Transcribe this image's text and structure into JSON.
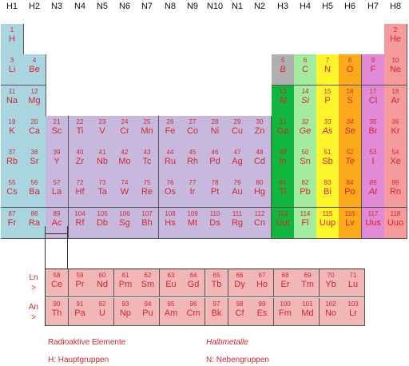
{
  "headers": [
    "H1",
    "H2",
    "N3",
    "N4",
    "N5",
    "N6",
    "N7",
    "N8",
    "N9",
    "N10",
    "N1",
    "N2",
    "H3",
    "H4",
    "H5",
    "H6",
    "H7",
    "H8"
  ],
  "colors": {
    "s_block": "#a9d5e0",
    "d_block": "#c6b9dd",
    "f_block": "#f1b6b6",
    "noble": "#f69b9b",
    "boron": "#b0b0b0",
    "h3_metal": "#11b63e",
    "h4": "#a3ec9f",
    "h5": "#fcf52c",
    "h6": "#fda91c",
    "h7": "#e08ad8",
    "text": "#d8242c"
  },
  "elements": [
    {
      "n": "1",
      "s": "H",
      "r": 0,
      "c": 0,
      "g": "s"
    },
    {
      "n": "2",
      "s": "He",
      "r": 0,
      "c": 17,
      "g": "noble"
    },
    {
      "n": "3",
      "s": "Li",
      "r": 1,
      "c": 0,
      "g": "s"
    },
    {
      "n": "4",
      "s": "Be",
      "r": 1,
      "c": 1,
      "g": "s"
    },
    {
      "n": "5",
      "s": "B",
      "r": 1,
      "c": 12,
      "g": "boron",
      "i": true
    },
    {
      "n": "6",
      "s": "C",
      "r": 1,
      "c": 13,
      "g": "h4"
    },
    {
      "n": "7",
      "s": "N",
      "r": 1,
      "c": 14,
      "g": "h5"
    },
    {
      "n": "8",
      "s": "O",
      "r": 1,
      "c": 15,
      "g": "h6"
    },
    {
      "n": "9",
      "s": "F",
      "r": 1,
      "c": 16,
      "g": "h7"
    },
    {
      "n": "10",
      "s": "Ne",
      "r": 1,
      "c": 17,
      "g": "noble"
    },
    {
      "n": "11",
      "s": "Na",
      "r": 2,
      "c": 0,
      "g": "s"
    },
    {
      "n": "12",
      "s": "Mg",
      "r": 2,
      "c": 1,
      "g": "s"
    },
    {
      "n": "13",
      "s": "Al",
      "r": 2,
      "c": 12,
      "g": "h3"
    },
    {
      "n": "14",
      "s": "Si",
      "r": 2,
      "c": 13,
      "g": "h4",
      "i": true
    },
    {
      "n": "15",
      "s": "P",
      "r": 2,
      "c": 14,
      "g": "h5"
    },
    {
      "n": "16",
      "s": "S",
      "r": 2,
      "c": 15,
      "g": "h6"
    },
    {
      "n": "17",
      "s": "Cl",
      "r": 2,
      "c": 16,
      "g": "h7"
    },
    {
      "n": "18",
      "s": "Ar",
      "r": 2,
      "c": 17,
      "g": "noble"
    },
    {
      "n": "19",
      "s": "K",
      "r": 3,
      "c": 0,
      "g": "s"
    },
    {
      "n": "20",
      "s": "Ca",
      "r": 3,
      "c": 1,
      "g": "s"
    },
    {
      "n": "21",
      "s": "Sc",
      "r": 3,
      "c": 2,
      "g": "d"
    },
    {
      "n": "22",
      "s": "Ti",
      "r": 3,
      "c": 3,
      "g": "d"
    },
    {
      "n": "23",
      "s": "V",
      "r": 3,
      "c": 4,
      "g": "d"
    },
    {
      "n": "24",
      "s": "Cr",
      "r": 3,
      "c": 5,
      "g": "d"
    },
    {
      "n": "25",
      "s": "Mn",
      "r": 3,
      "c": 6,
      "g": "d"
    },
    {
      "n": "26",
      "s": "Fe",
      "r": 3,
      "c": 7,
      "g": "d"
    },
    {
      "n": "27",
      "s": "Co",
      "r": 3,
      "c": 8,
      "g": "d"
    },
    {
      "n": "28",
      "s": "Ni",
      "r": 3,
      "c": 9,
      "g": "d"
    },
    {
      "n": "29",
      "s": "Cu",
      "r": 3,
      "c": 10,
      "g": "d"
    },
    {
      "n": "30",
      "s": "Zn",
      "r": 3,
      "c": 11,
      "g": "d"
    },
    {
      "n": "31",
      "s": "Ga",
      "r": 3,
      "c": 12,
      "g": "h3"
    },
    {
      "n": "32",
      "s": "Ge",
      "r": 3,
      "c": 13,
      "g": "h4",
      "i": true
    },
    {
      "n": "33",
      "s": "As",
      "r": 3,
      "c": 14,
      "g": "h5",
      "i": true
    },
    {
      "n": "34",
      "s": "Se",
      "r": 3,
      "c": 15,
      "g": "h6",
      "i": true
    },
    {
      "n": "35",
      "s": "Br",
      "r": 3,
      "c": 16,
      "g": "h7"
    },
    {
      "n": "36",
      "s": "Kr",
      "r": 3,
      "c": 17,
      "g": "noble"
    },
    {
      "n": "37",
      "s": "Rb",
      "r": 4,
      "c": 0,
      "g": "s"
    },
    {
      "n": "38",
      "s": "Sr",
      "r": 4,
      "c": 1,
      "g": "s"
    },
    {
      "n": "39",
      "s": "Y",
      "r": 4,
      "c": 2,
      "g": "d"
    },
    {
      "n": "40",
      "s": "Zr",
      "r": 4,
      "c": 3,
      "g": "d"
    },
    {
      "n": "41",
      "s": "Nb",
      "r": 4,
      "c": 4,
      "g": "d"
    },
    {
      "n": "42",
      "s": "Mo",
      "r": 4,
      "c": 5,
      "g": "d"
    },
    {
      "n": "43",
      "s": "Tc",
      "r": 4,
      "c": 6,
      "g": "d"
    },
    {
      "n": "44",
      "s": "Ru",
      "r": 4,
      "c": 7,
      "g": "d"
    },
    {
      "n": "45",
      "s": "Rh",
      "r": 4,
      "c": 8,
      "g": "d"
    },
    {
      "n": "46",
      "s": "Pd",
      "r": 4,
      "c": 9,
      "g": "d"
    },
    {
      "n": "47",
      "s": "Ag",
      "r": 4,
      "c": 10,
      "g": "d"
    },
    {
      "n": "48",
      "s": "Cd",
      "r": 4,
      "c": 11,
      "g": "d"
    },
    {
      "n": "49",
      "s": "In",
      "r": 4,
      "c": 12,
      "g": "h3"
    },
    {
      "n": "50",
      "s": "Sn",
      "r": 4,
      "c": 13,
      "g": "h4"
    },
    {
      "n": "51",
      "s": "Sb",
      "r": 4,
      "c": 14,
      "g": "h5"
    },
    {
      "n": "52",
      "s": "Te",
      "r": 4,
      "c": 15,
      "g": "h6",
      "i": true
    },
    {
      "n": "53",
      "s": "I",
      "r": 4,
      "c": 16,
      "g": "h7"
    },
    {
      "n": "54",
      "s": "Xe",
      "r": 4,
      "c": 17,
      "g": "noble"
    },
    {
      "n": "55",
      "s": "Cs",
      "r": 5,
      "c": 0,
      "g": "s"
    },
    {
      "n": "56",
      "s": "Ba",
      "r": 5,
      "c": 1,
      "g": "s"
    },
    {
      "n": "57",
      "s": "La",
      "r": 5,
      "c": 2,
      "g": "d"
    },
    {
      "n": "72",
      "s": "Hf",
      "r": 5,
      "c": 3,
      "g": "d"
    },
    {
      "n": "73",
      "s": "Ta",
      "r": 5,
      "c": 4,
      "g": "d"
    },
    {
      "n": "74",
      "s": "W",
      "r": 5,
      "c": 5,
      "g": "d"
    },
    {
      "n": "75",
      "s": "Re",
      "r": 5,
      "c": 6,
      "g": "d"
    },
    {
      "n": "76",
      "s": "Os",
      "r": 5,
      "c": 7,
      "g": "d"
    },
    {
      "n": "77",
      "s": "Ir",
      "r": 5,
      "c": 8,
      "g": "d"
    },
    {
      "n": "78",
      "s": "Pt",
      "r": 5,
      "c": 9,
      "g": "d"
    },
    {
      "n": "79",
      "s": "Au",
      "r": 5,
      "c": 10,
      "g": "d"
    },
    {
      "n": "80",
      "s": "Hg",
      "r": 5,
      "c": 11,
      "g": "d"
    },
    {
      "n": "81",
      "s": "Tl",
      "r": 5,
      "c": 12,
      "g": "h3"
    },
    {
      "n": "82",
      "s": "Pb",
      "r": 5,
      "c": 13,
      "g": "h4"
    },
    {
      "n": "83",
      "s": "Bi",
      "r": 5,
      "c": 14,
      "g": "h5"
    },
    {
      "n": "84",
      "s": "Po",
      "r": 5,
      "c": 15,
      "g": "h6"
    },
    {
      "n": "85",
      "s": "At",
      "r": 5,
      "c": 16,
      "g": "h7",
      "i": true
    },
    {
      "n": "86",
      "s": "Rn",
      "r": 5,
      "c": 17,
      "g": "noble"
    },
    {
      "n": "87",
      "s": "Fr",
      "r": 6,
      "c": 0,
      "g": "s"
    },
    {
      "n": "88",
      "s": "Ra",
      "r": 6,
      "c": 1,
      "g": "s"
    },
    {
      "n": "89",
      "s": "Ac",
      "r": 6,
      "c": 2,
      "g": "d"
    },
    {
      "n": "104",
      "s": "Rf",
      "r": 6,
      "c": 3,
      "g": "d"
    },
    {
      "n": "105",
      "s": "Db",
      "r": 6,
      "c": 4,
      "g": "d"
    },
    {
      "n": "106",
      "s": "Sg",
      "r": 6,
      "c": 5,
      "g": "d"
    },
    {
      "n": "107",
      "s": "Bh",
      "r": 6,
      "c": 6,
      "g": "d"
    },
    {
      "n": "108",
      "s": "Hs",
      "r": 6,
      "c": 7,
      "g": "d"
    },
    {
      "n": "109",
      "s": "Mt",
      "r": 6,
      "c": 8,
      "g": "d"
    },
    {
      "n": "110",
      "s": "Ds",
      "r": 6,
      "c": 9,
      "g": "d"
    },
    {
      "n": "111",
      "s": "Rg",
      "r": 6,
      "c": 10,
      "g": "d"
    },
    {
      "n": "112",
      "s": "Cn",
      "r": 6,
      "c": 11,
      "g": "d"
    },
    {
      "n": "113",
      "s": "Uut",
      "r": 6,
      "c": 12,
      "g": "h3"
    },
    {
      "n": "114",
      "s": "Fl",
      "r": 6,
      "c": 13,
      "g": "h4"
    },
    {
      "n": "115",
      "s": "Uup",
      "r": 6,
      "c": 14,
      "g": "h5"
    },
    {
      "n": "116",
      "s": "Lv",
      "r": 6,
      "c": 15,
      "g": "h6"
    },
    {
      "n": "117",
      "s": "Uus",
      "r": 6,
      "c": 16,
      "g": "h7"
    },
    {
      "n": "118",
      "s": "Uuo",
      "r": 6,
      "c": 17,
      "g": "noble"
    }
  ],
  "lanthanides": {
    "label_top": "Ln",
    "label_bottom": ">",
    "items": [
      {
        "n": "58",
        "s": "Ce"
      },
      {
        "n": "59",
        "s": "Pr"
      },
      {
        "n": "60",
        "s": "Nd"
      },
      {
        "n": "61",
        "s": "Pm"
      },
      {
        "n": "62",
        "s": "Sm"
      },
      {
        "n": "63",
        "s": "Eu"
      },
      {
        "n": "64",
        "s": "Gd"
      },
      {
        "n": "65",
        "s": "Tb"
      },
      {
        "n": "66",
        "s": "Dy"
      },
      {
        "n": "67",
        "s": "Ho"
      },
      {
        "n": "68",
        "s": "Er"
      },
      {
        "n": "69",
        "s": "Tm"
      },
      {
        "n": "70",
        "s": "Yb"
      },
      {
        "n": "71",
        "s": "Lu"
      }
    ]
  },
  "actinides": {
    "label_top": "An",
    "label_bottom": ">",
    "items": [
      {
        "n": "90",
        "s": "Th"
      },
      {
        "n": "91",
        "s": "Pa"
      },
      {
        "n": "92",
        "s": "U"
      },
      {
        "n": "93",
        "s": "Np"
      },
      {
        "n": "94",
        "s": "Pu"
      },
      {
        "n": "95",
        "s": "Am"
      },
      {
        "n": "96",
        "s": "Cm"
      },
      {
        "n": "97",
        "s": "Bk"
      },
      {
        "n": "98",
        "s": "Cf"
      },
      {
        "n": "99",
        "s": "Es"
      },
      {
        "n": "100",
        "s": "Fm"
      },
      {
        "n": "101",
        "s": "Md"
      },
      {
        "n": "102",
        "s": "No"
      },
      {
        "n": "103",
        "s": "Lr"
      }
    ]
  },
  "legend": {
    "radioactive": "Radioaktive Elemente",
    "semimetals": "Halbmetalle",
    "main_groups": "H: Hauptgruppen",
    "sub_groups": "N: Nebengruppen"
  }
}
